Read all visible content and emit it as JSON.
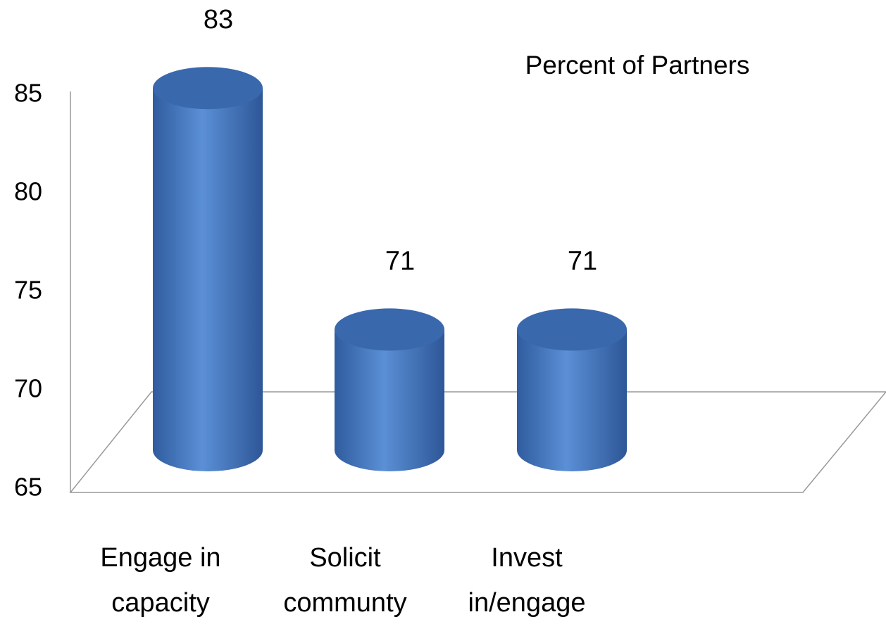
{
  "chart_data": {
    "type": "bar",
    "title": "Percent of Partners",
    "categories": [
      "Engage in\ncapacity",
      "Solicit\ncommunty",
      "Invest\nin/engage"
    ],
    "values": [
      83,
      71,
      71
    ],
    "color": "#4a7cc4",
    "ylim": [
      65,
      85
    ],
    "yticks": [
      65,
      70,
      75,
      80,
      85
    ]
  }
}
